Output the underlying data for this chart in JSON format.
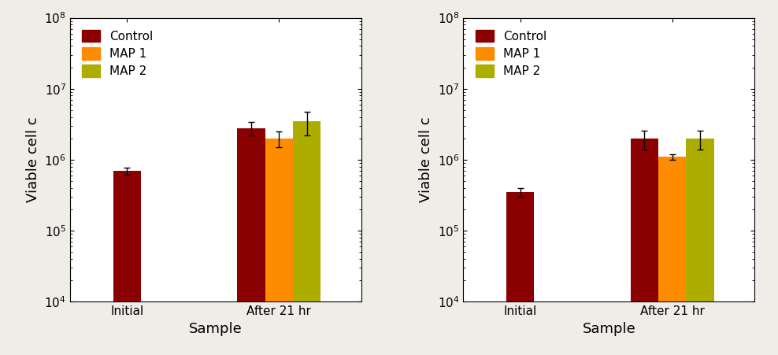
{
  "left": {
    "categories": [
      "Initial",
      "After 21 hr"
    ],
    "control": [
      700000.0,
      2800000.0
    ],
    "map1": [
      null,
      2000000.0
    ],
    "map2": [
      null,
      3500000.0
    ],
    "control_err": [
      80000.0,
      600000.0
    ],
    "map1_err": [
      null,
      500000.0
    ],
    "map2_err": [
      null,
      1300000.0
    ],
    "ylabel": "Viable cell c",
    "xlabel": "Sample",
    "ylim": [
      10000.0,
      100000000.0
    ]
  },
  "right": {
    "categories": [
      "Initial",
      "After 21 hr"
    ],
    "control": [
      350000.0,
      2000000.0
    ],
    "map1": [
      null,
      1100000.0
    ],
    "map2": [
      null,
      2000000.0
    ],
    "control_err": [
      50000.0,
      600000.0
    ],
    "map1_err": [
      null,
      100000.0
    ],
    "map2_err": [
      null,
      600000.0
    ],
    "ylabel": "Viable cell c",
    "xlabel": "Sample",
    "ylim": [
      10000.0,
      100000000.0
    ]
  },
  "legend_labels": [
    "Control",
    "MAP 1",
    "MAP 2"
  ],
  "colors": {
    "control": "#8B0000",
    "map1": "#FF8C00",
    "map2": "#ADAD00"
  },
  "bar_width": 0.22,
  "group_positions": [
    1.0,
    2.2
  ],
  "fontsize_label": 13,
  "fontsize_tick": 11,
  "fontsize_legend": 11,
  "fig_bg": "#f0ede8"
}
